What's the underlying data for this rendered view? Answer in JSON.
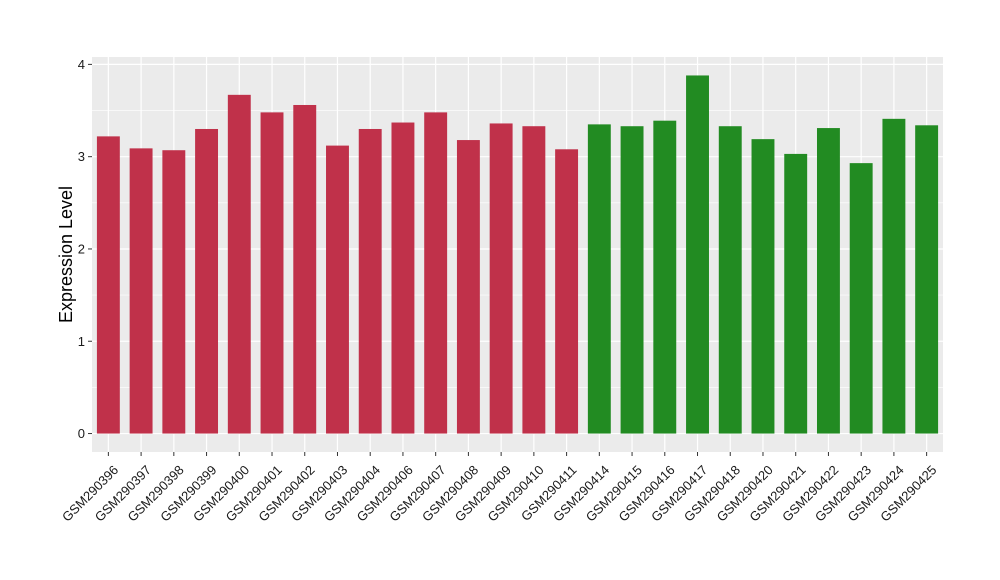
{
  "chart_data": {
    "type": "bar",
    "ylabel": "Expression Level",
    "xlabel": "",
    "ylim": [
      -0.2,
      4.08
    ],
    "yticks": [
      0,
      1,
      2,
      3,
      4
    ],
    "ytick_labels": [
      "0",
      "1",
      "2",
      "3",
      "4"
    ],
    "grid": true,
    "legend": "none",
    "categories": [
      "GSM290396",
      "GSM290397",
      "GSM290398",
      "GSM290399",
      "GSM290400",
      "GSM290401",
      "GSM290402",
      "GSM290403",
      "GSM290404",
      "GSM290406",
      "GSM290407",
      "GSM290408",
      "GSM290409",
      "GSM290410",
      "GSM290411",
      "GSM290414",
      "GSM290415",
      "GSM290416",
      "GSM290417",
      "GSM290418",
      "GSM290420",
      "GSM290421",
      "GSM290422",
      "GSM290423",
      "GSM290424",
      "GSM290425"
    ],
    "values": [
      3.22,
      3.09,
      3.07,
      3.3,
      3.67,
      3.48,
      3.56,
      3.12,
      3.3,
      3.37,
      3.48,
      3.18,
      3.36,
      3.33,
      3.08,
      3.35,
      3.33,
      3.39,
      3.88,
      3.33,
      3.19,
      3.03,
      3.31,
      2.93,
      3.41,
      3.34
    ],
    "group_colors": [
      "#c0314a",
      "#c0314a",
      "#c0314a",
      "#c0314a",
      "#c0314a",
      "#c0314a",
      "#c0314a",
      "#c0314a",
      "#c0314a",
      "#c0314a",
      "#c0314a",
      "#c0314a",
      "#c0314a",
      "#c0314a",
      "#c0314a",
      "#228b22",
      "#228b22",
      "#228b22",
      "#228b22",
      "#228b22",
      "#228b22",
      "#228b22",
      "#228b22",
      "#228b22",
      "#228b22",
      "#228b22"
    ],
    "panel_background": "#ebebeb",
    "grid_color": "#ffffff"
  }
}
